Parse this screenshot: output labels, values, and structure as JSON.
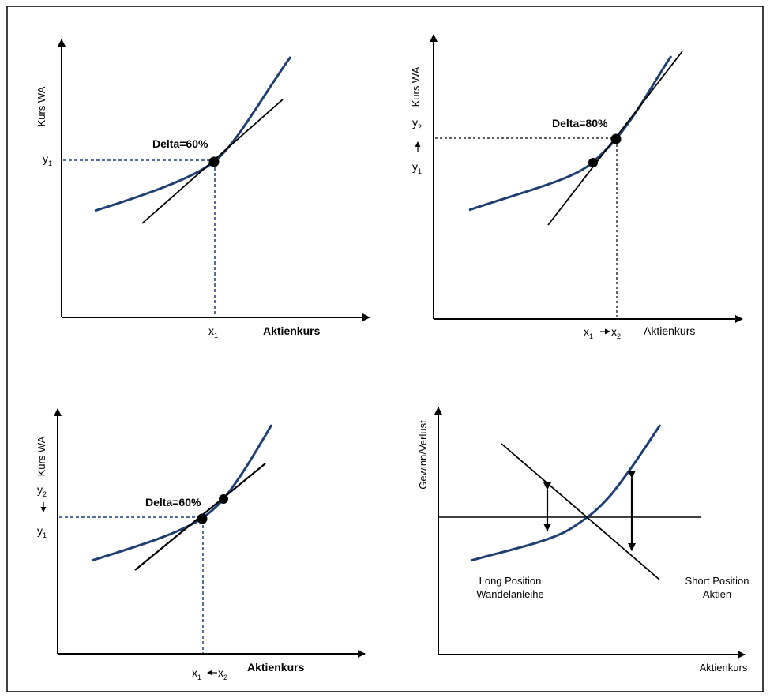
{
  "colors": {
    "curve": "#1f3f73",
    "guide": "#1f3f73",
    "ink": "#000000",
    "frame": "#000000"
  },
  "panels": {
    "p1": {
      "y_axis_label": "Kurs WA",
      "x_axis_label": "Aktienkurs",
      "delta_label": "Delta=60%",
      "y1": "y",
      "y1_sub": "1",
      "x1": "x",
      "x1_sub": "1"
    },
    "p2": {
      "y_axis_label": "Kurs WA",
      "x_axis_label": "Aktienkurs",
      "delta_label": "Delta=80%",
      "y2": "y",
      "y2_sub": "2",
      "y1": "y",
      "y1_sub": "1",
      "x1": "x",
      "x1_sub": "1",
      "x2": "x",
      "x2_sub": "2"
    },
    "p3": {
      "y_axis_label": "Kurs WA",
      "x_axis_label": "Aktienkurs",
      "delta_label": "Delta=60%",
      "y2": "y",
      "y2_sub": "2",
      "y1": "y",
      "y1_sub": "1",
      "x1": "x",
      "x1_sub": "1",
      "x2": "x",
      "x2_sub": "2"
    },
    "p4": {
      "y_axis_label": "Gewinn/Verlust",
      "x_axis_label": "Aktienkurs",
      "long_line1": "Long Position",
      "long_line2": "Wandelanleihe",
      "short_line1": "Short Position",
      "short_line2": "Aktien"
    }
  }
}
